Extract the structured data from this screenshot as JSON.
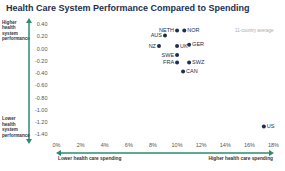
{
  "chart_data": {
    "type": "scatter",
    "title": "Health Care System Performance Compared to Spending",
    "annotation": "11-country average",
    "y_label_high": "Higher health system performance",
    "y_label_low": "Lower health system performance",
    "x_label_low": "Lower health care spending",
    "x_label_high": "Higher health care spending",
    "labels": [
      "NETH",
      "NOR",
      "AUS",
      "UK",
      "GER",
      "NZ",
      "SWE",
      "FRA",
      "SWZ",
      "CAN",
      "US"
    ],
    "x": [
      10.0,
      10.6,
      9.0,
      10.0,
      11.0,
      8.5,
      10.0,
      10.0,
      11.0,
      10.5,
      17.2
    ],
    "values": [
      0.3,
      0.3,
      0.22,
      0.05,
      0.07,
      0.05,
      -0.1,
      -0.22,
      -0.22,
      -0.37,
      -1.27
    ],
    "color": "#1b2f4e",
    "marker": "circle",
    "grid": false,
    "xlim": [
      0,
      18
    ],
    "xticks": [
      {
        "value": 0,
        "label": "0%"
      },
      {
        "value": 2,
        "label": "2%"
      },
      {
        "value": 4,
        "label": "4%"
      },
      {
        "value": 6,
        "label": "6%"
      },
      {
        "value": 8,
        "label": "8%"
      },
      {
        "value": 10,
        "label": "10%"
      },
      {
        "value": 12,
        "label": "12%"
      },
      {
        "value": 14,
        "label": "14%"
      },
      {
        "value": 16,
        "label": "16%"
      },
      {
        "value": 18,
        "label": "18%"
      }
    ],
    "ylim": [
      -1.4,
      0.4
    ],
    "yticks": [
      {
        "value": 0.4,
        "label": "0.40"
      },
      {
        "value": 0.2,
        "label": "0.20"
      },
      {
        "value": 0,
        "label": "0.00"
      },
      {
        "value": -0.2,
        "label": "-0.20"
      },
      {
        "value": -0.4,
        "label": "-0.40"
      },
      {
        "value": -0.6,
        "label": "-0.60"
      },
      {
        "value": -0.8,
        "label": "-0.80"
      },
      {
        "value": -1.0,
        "label": "-1.00"
      },
      {
        "value": -1.2,
        "label": "-1.20"
      },
      {
        "value": -1.4,
        "label": "-1.40"
      }
    ]
  }
}
